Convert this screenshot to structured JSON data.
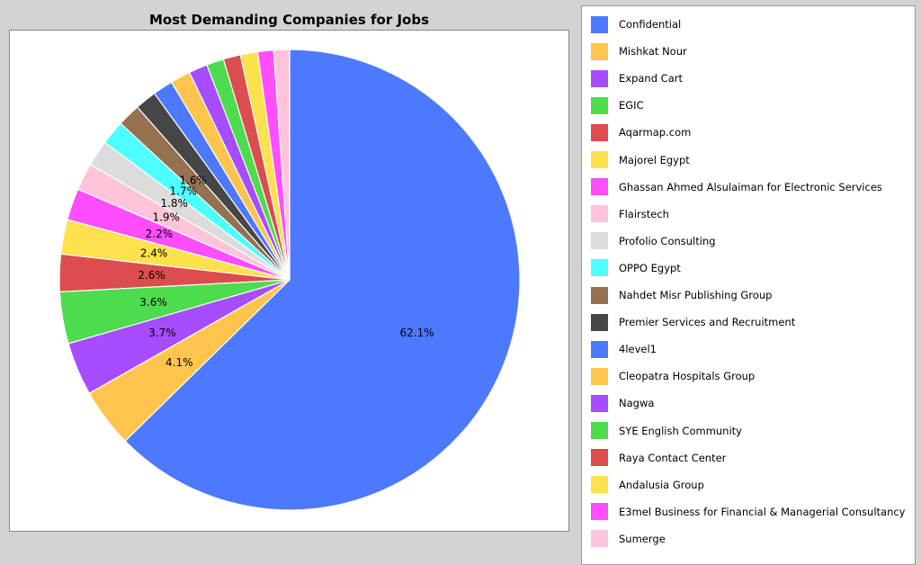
{
  "chart_data": {
    "type": "pie",
    "title": "Most Demanding Companies for Jobs",
    "start_angle_deg": 90,
    "direction": "clockwise",
    "legend_position": "right",
    "colors": {
      "slice_outline": "#ffffff",
      "plot_background": "#ffffff",
      "page_background": "#d3d3d3"
    },
    "slices": [
      {
        "label": "Confidential",
        "value": 62.1,
        "color": "#4d79ff",
        "pct_label": "62.1%"
      },
      {
        "label": "Mishkat Nour",
        "value": 4.1,
        "color": "#ffc44d",
        "pct_label": "4.1%"
      },
      {
        "label": "Expand Cart",
        "value": 3.7,
        "color": "#a64dff",
        "pct_label": "3.7%"
      },
      {
        "label": "EGIC",
        "value": 3.6,
        "color": "#4ddc4d",
        "pct_label": "3.6%"
      },
      {
        "label": "Aqarmap.com",
        "value": 2.6,
        "color": "#dc4d4d",
        "pct_label": "2.6%"
      },
      {
        "label": "Majorel Egypt",
        "value": 2.4,
        "color": "#ffe04d",
        "pct_label": "2.4%"
      },
      {
        "label": "Ghassan Ahmed Alsulaiman for Electronic Services",
        "value": 2.2,
        "color": "#ff4dff",
        "pct_label": "2.2%"
      },
      {
        "label": "Flairstech",
        "value": 1.9,
        "color": "#ffc4dc",
        "pct_label": "1.9%"
      },
      {
        "label": "Profolio Consulting",
        "value": 1.8,
        "color": "#dcdcdc",
        "pct_label": "1.8%"
      },
      {
        "label": "OPPO Egypt",
        "value": 1.7,
        "color": "#4dffff",
        "pct_label": "1.7%"
      },
      {
        "label": "Nahdet Misr Publishing Group",
        "value": 1.6,
        "color": "#94714f",
        "pct_label": "1.6%"
      },
      {
        "label": "Premier Services and Recruitment",
        "value": 1.5,
        "color": "#464646",
        "pct_label": ""
      },
      {
        "label": "4level1",
        "value": 1.4,
        "color": "#4d79ff",
        "pct_label": ""
      },
      {
        "label": "Cleopatra Hospitals Group",
        "value": 1.4,
        "color": "#ffc44d",
        "pct_label": ""
      },
      {
        "label": "Nagwa",
        "value": 1.3,
        "color": "#a64dff",
        "pct_label": ""
      },
      {
        "label": "SYE English Community",
        "value": 1.2,
        "color": "#4ddc4d",
        "pct_label": ""
      },
      {
        "label": "Raya Contact Center",
        "value": 1.2,
        "color": "#dc4d4d",
        "pct_label": ""
      },
      {
        "label": "Andalusia Group",
        "value": 1.2,
        "color": "#ffe04d",
        "pct_label": ""
      },
      {
        "label": "E3mel Business for Financial & Managerial Consultancy",
        "value": 1.1,
        "color": "#ff4dff",
        "pct_label": ""
      },
      {
        "label": "Sumerge",
        "value": 1.1,
        "color": "#ffc4dc",
        "pct_label": ""
      }
    ]
  }
}
